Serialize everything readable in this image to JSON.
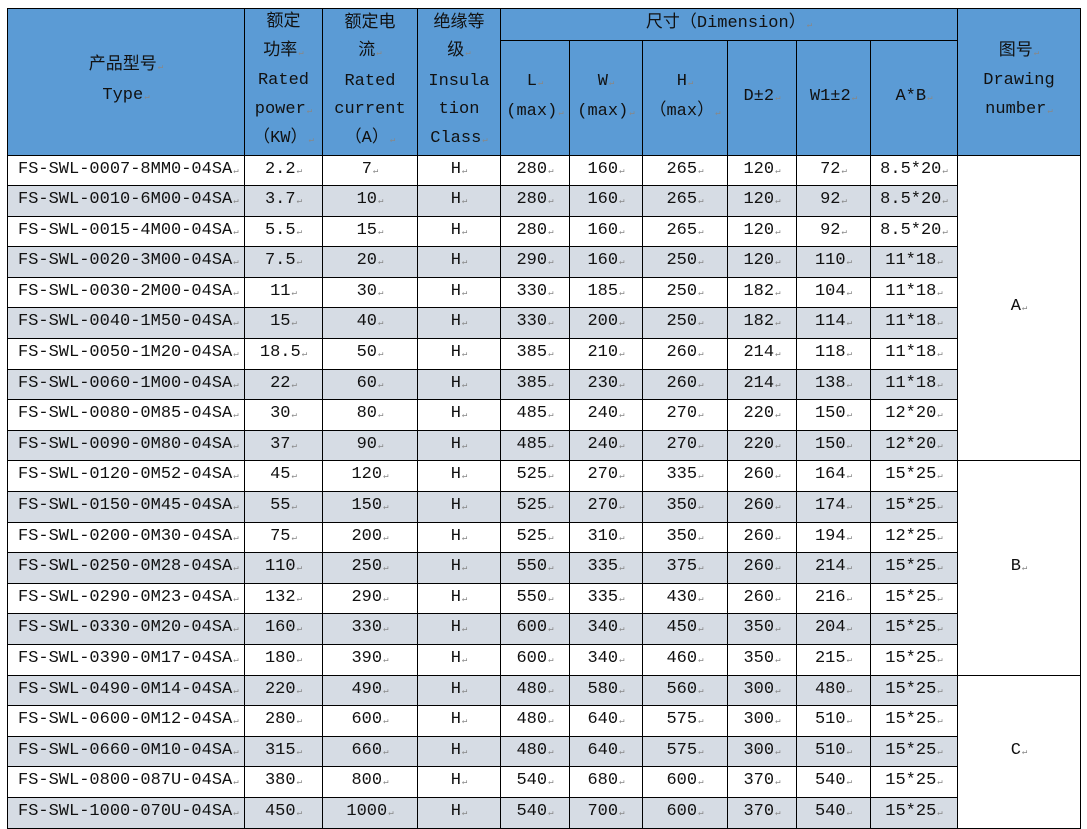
{
  "colors": {
    "header": "#5b9bd5",
    "row_alt": "#d6dce4",
    "row": "#ffffff"
  },
  "header": {
    "type_cn": "产品型号",
    "type_en": "Type",
    "power_cn": [
      "额定",
      "功率"
    ],
    "power_en": [
      "Rated",
      "power",
      "（KW）"
    ],
    "current_cn": [
      "额定电",
      "流"
    ],
    "current_en": [
      "Rated",
      "current",
      "（A）"
    ],
    "insul_cn": [
      "绝缘等",
      "级"
    ],
    "insul_en": [
      "Insula",
      "tion",
      "Class"
    ],
    "dimension": "尺寸（Dimension）",
    "dims": [
      [
        "L",
        "(max)"
      ],
      [
        "W",
        "(max)"
      ],
      [
        "H",
        "（max）"
      ],
      [
        "D±2"
      ],
      [
        "W1±2"
      ],
      [
        "A*B"
      ]
    ],
    "drawing_cn": "图号",
    "drawing_en": [
      "Drawing",
      "number"
    ]
  },
  "rows": [
    [
      "FS-SWL-0007-8MM0-04SA",
      "2.2",
      "7",
      "H",
      "280",
      "160",
      "265",
      "120",
      "72",
      "8.5*20"
    ],
    [
      "FS-SWL-0010-6M00-04SA",
      "3.7",
      "10",
      "H",
      "280",
      "160",
      "265",
      "120",
      "92",
      "8.5*20"
    ],
    [
      "FS-SWL-0015-4M00-04SA",
      "5.5",
      "15",
      "H",
      "280",
      "160",
      "265",
      "120",
      "92",
      "8.5*20"
    ],
    [
      "FS-SWL-0020-3M00-04SA",
      "7.5",
      "20",
      "H",
      "290",
      "160",
      "250",
      "120",
      "110",
      "11*18"
    ],
    [
      "FS-SWL-0030-2M00-04SA",
      "11",
      "30",
      "H",
      "330",
      "185",
      "250",
      "182",
      "104",
      "11*18"
    ],
    [
      "FS-SWL-0040-1M50-04SA",
      "15",
      "40",
      "H",
      "330",
      "200",
      "250",
      "182",
      "114",
      "11*18"
    ],
    [
      "FS-SWL-0050-1M20-04SA",
      "18.5",
      "50",
      "H",
      "385",
      "210",
      "260",
      "214",
      "118",
      "11*18"
    ],
    [
      "FS-SWL-0060-1M00-04SA",
      "22",
      "60",
      "H",
      "385",
      "230",
      "260",
      "214",
      "138",
      "11*18"
    ],
    [
      "FS-SWL-0080-0M85-04SA",
      "30",
      "80",
      "H",
      "485",
      "240",
      "270",
      "220",
      "150",
      "12*20"
    ],
    [
      "FS-SWL-0090-0M80-04SA",
      "37",
      "90",
      "H",
      "485",
      "240",
      "270",
      "220",
      "150",
      "12*20"
    ],
    [
      "FS-SWL-0120-0M52-04SA",
      "45",
      "120",
      "H",
      "525",
      "270",
      "335",
      "260",
      "164",
      "15*25"
    ],
    [
      "FS-SWL-0150-0M45-04SA",
      "55",
      "150",
      "H",
      "525",
      "270",
      "350",
      "260",
      "174",
      "15*25"
    ],
    [
      "FS-SWL-0200-0M30-04SA",
      "75",
      "200",
      "H",
      "525",
      "310",
      "350",
      "260",
      "194",
      "12*25"
    ],
    [
      "FS-SWL-0250-0M28-04SA",
      "110",
      "250",
      "H",
      "550",
      "335",
      "375",
      "260",
      "214",
      "15*25"
    ],
    [
      "FS-SWL-0290-0M23-04SA",
      "132",
      "290",
      "H",
      "550",
      "335",
      "430",
      "260",
      "216",
      "15*25"
    ],
    [
      "FS-SWL-0330-0M20-04SA",
      "160",
      "330",
      "H",
      "600",
      "340",
      "450",
      "350",
      "204",
      "15*25"
    ],
    [
      "FS-SWL-0390-0M17-04SA",
      "180",
      "390",
      "H",
      "600",
      "340",
      "460",
      "350",
      "215",
      "15*25"
    ],
    [
      "FS-SWL-0490-0M14-04SA",
      "220",
      "490",
      "H",
      "480",
      "580",
      "560",
      "300",
      "480",
      "15*25"
    ],
    [
      "FS-SWL-0600-0M12-04SA",
      "280",
      "600",
      "H",
      "480",
      "640",
      "575",
      "300",
      "510",
      "15*25"
    ],
    [
      "FS-SWL-0660-0M10-04SA",
      "315",
      "660",
      "H",
      "480",
      "640",
      "575",
      "300",
      "510",
      "15*25"
    ],
    [
      "FS-SWL-0800-087U-04SA",
      "380",
      "800",
      "H",
      "540",
      "680",
      "600",
      "370",
      "540",
      "15*25"
    ],
    [
      "FS-SWL-1000-070U-04SA",
      "450",
      "1000",
      "H",
      "540",
      "700",
      "600",
      "370",
      "540",
      "15*25"
    ]
  ],
  "drawing_groups": [
    {
      "label": "A",
      "rows": 10
    },
    {
      "label": "B",
      "rows": 7
    },
    {
      "label": "C",
      "rows": 5
    }
  ]
}
